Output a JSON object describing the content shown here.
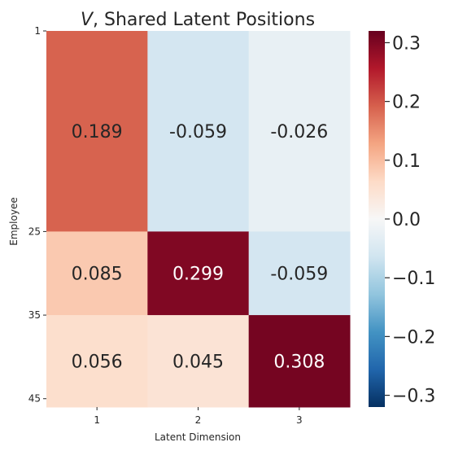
{
  "chart_data": {
    "type": "heatmap",
    "title_prefix": "V",
    "title_suffix": ", Shared Latent Positions",
    "xlabel": "Latent Dimension",
    "ylabel": "Employee",
    "x_categories": [
      "1",
      "2",
      "3"
    ],
    "row_blocks": [
      {
        "from": 1,
        "to": 25,
        "values": [
          0.189,
          -0.059,
          -0.026
        ]
      },
      {
        "from": 25,
        "to": 35,
        "values": [
          0.085,
          0.299,
          -0.059
        ]
      },
      {
        "from": 35,
        "to": 45,
        "values": [
          0.056,
          0.045,
          0.308
        ]
      }
    ],
    "y_ticks": [
      "1",
      "25",
      "35",
      "45"
    ],
    "value_labels": [
      [
        "0.189",
        "-0.059",
        "-0.026"
      ],
      [
        "0.085",
        "0.299",
        "-0.059"
      ],
      [
        "0.056",
        "0.045",
        "0.308"
      ]
    ],
    "colorbar": {
      "vmin": -0.32,
      "vmax": 0.32,
      "ticks": [
        -0.3,
        -0.2,
        -0.1,
        0.0,
        0.1,
        0.2,
        0.3
      ],
      "tick_labels": [
        "−0.3",
        "−0.2",
        "−0.1",
        "0.0",
        "0.1",
        "0.2",
        "0.3"
      ],
      "colormap": "RdBu_r"
    }
  }
}
